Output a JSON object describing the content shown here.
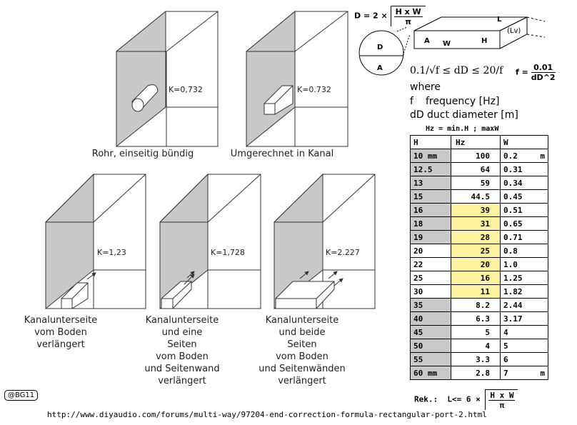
{
  "diagrams": {
    "d1": {
      "k": "K=0,732",
      "caption": [
        "Rohr, einseitig bündig"
      ]
    },
    "d2": {
      "k": "K=0.732",
      "caption": [
        "Umgerechnet in Kanal"
      ]
    },
    "d3": {
      "k": "K=1,23",
      "caption": [
        "Kanalunterseite",
        "vom Boden",
        "verlängert"
      ]
    },
    "d4": {
      "k": "K=1,728",
      "caption": [
        "Kanalunterseite",
        "und eine",
        "Seiten",
        "vom Boden",
        "und Seitenwand",
        "verlängert"
      ]
    },
    "d5": {
      "k": "K=2.227",
      "caption": [
        "Kanalunterseite",
        "und beide",
        "Seiten",
        "vom Boden",
        "und Seitenwänden",
        "verlängert"
      ]
    }
  },
  "formula": {
    "d_prefix": "D = 2 ×",
    "d_num": "H x W",
    "d_den": "π",
    "circle_d": "D",
    "circle_a": "A",
    "duct_l": "L",
    "duct_lv": "(Lv)",
    "duct_a": "A",
    "duct_w": "W",
    "duct_h": "H",
    "range": "0.1/√f ≤ dD ≤ 20/f",
    "f_prefix": "f =",
    "f_num": "0.01",
    "f_den": "dD^2",
    "where": "where",
    "def1_sym": "f",
    "def1_text": "frequency [Hz]",
    "def2_sym": "dD",
    "def2_text": "duct diameter [m]"
  },
  "table": {
    "title": "Hz = min.H ; maxW",
    "headers": [
      "H",
      "Hz",
      "W"
    ],
    "rows": [
      [
        "10 mm",
        "100",
        "0.2",
        "m"
      ],
      [
        "12.5",
        "64",
        "0.31",
        ""
      ],
      [
        "13",
        "59",
        "0.34",
        ""
      ],
      [
        "15",
        "44.5",
        "0.45",
        ""
      ],
      [
        "16",
        "39",
        "0.51",
        ""
      ],
      [
        "18",
        "31",
        "0.65",
        ""
      ],
      [
        "19",
        "28",
        "0.71",
        ""
      ],
      [
        "20",
        "25",
        "0.8",
        ""
      ],
      [
        "22",
        "20",
        "1.0",
        ""
      ],
      [
        "25",
        "16",
        "1.25",
        ""
      ],
      [
        "30",
        "11",
        "1.82",
        ""
      ],
      [
        "35",
        "8.2",
        "2.44",
        ""
      ],
      [
        "40",
        "6.3",
        "3.17",
        ""
      ],
      [
        "45",
        "5",
        "4",
        ""
      ],
      [
        "50",
        "4",
        "5",
        ""
      ],
      [
        "55",
        "3.3",
        "6",
        ""
      ],
      [
        "60 mm",
        "2.8",
        "7",
        "m"
      ]
    ],
    "hz_highlight_rows": [
      4,
      5,
      6,
      7,
      8,
      9,
      10
    ],
    "h_gray_rows": [
      0,
      1,
      2,
      3,
      4,
      5,
      6,
      11,
      12,
      13,
      14,
      15,
      16
    ],
    "highlight_color": "#fff3a0",
    "gray_color": "#c9c9c9"
  },
  "rek": {
    "prefix": "Rek.:",
    "ineq": "L<= 6 ×",
    "num": "H x W",
    "den": "π"
  },
  "badge": "@BG11",
  "url": "http://www.diyaudio.com/forums/multi-way/97204-end-correction-formula-rectangular-port-2.html"
}
